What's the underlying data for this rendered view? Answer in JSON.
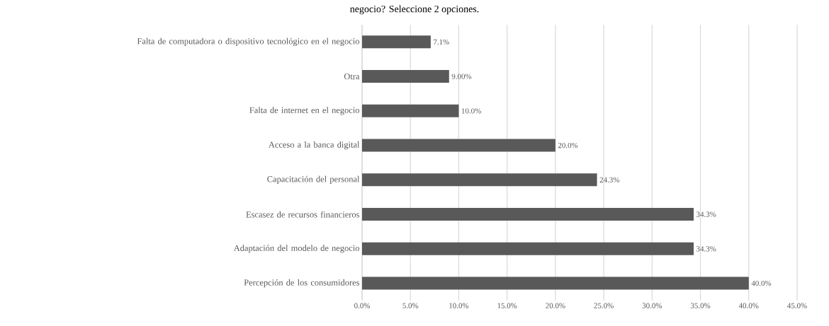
{
  "chart_data": {
    "type": "bar",
    "orientation": "horizontal",
    "title": "negocio? Seleccione 2 opciones.",
    "categories": [
      "Falta de computadora o dispositivo tecnológico en el negocio",
      "Otra",
      "Falta de internet en el negocio",
      "Acceso a la banca digital",
      "Capacitación del personal",
      "Escasez de recursos financieros",
      "Adaptación del modelo de negocio",
      "Percepción de los consumidores"
    ],
    "values": [
      7.1,
      9,
      10,
      20,
      24.3,
      34.3,
      34.3,
      40
    ],
    "value_labels": [
      "7.1%",
      "9.00%",
      "10.0%",
      "20.0%",
      "24.3%",
      "34.3%",
      "34.3%",
      "40.0%"
    ],
    "color": "#595959",
    "xlim": [
      0,
      45
    ],
    "xticks": [
      {
        "value": 0,
        "label": "0.0%"
      },
      {
        "value": 5,
        "label": "5.0%"
      },
      {
        "value": 10,
        "label": "10.0%"
      },
      {
        "value": 15,
        "label": "15.0%"
      },
      {
        "value": 20,
        "label": "20.0%"
      },
      {
        "value": 25,
        "label": "25.0%"
      },
      {
        "value": 30,
        "label": "30.0%"
      },
      {
        "value": 35,
        "label": "35.0%"
      },
      {
        "value": 40,
        "label": "40.0%"
      },
      {
        "value": 45,
        "label": "45.0%"
      }
    ],
    "grid": "x"
  }
}
